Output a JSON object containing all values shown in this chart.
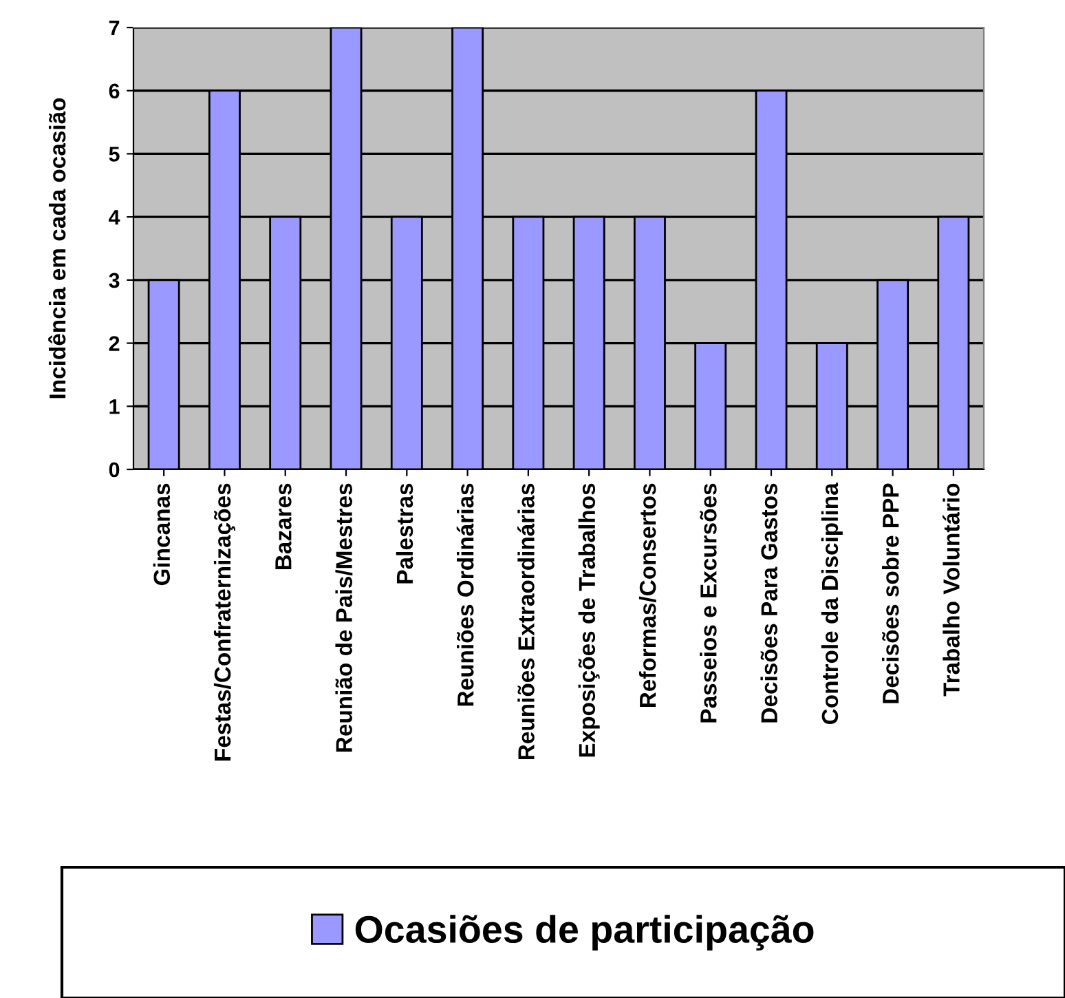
{
  "chart_data": {
    "type": "bar",
    "ylabel": "Incidência em cada ocasião",
    "categories": [
      "Gincanas",
      "Festas/Confraternizações",
      "Bazares",
      "Reunião de Pais/Mestres",
      "Palestras",
      "Reuniões Ordinárias",
      "Reuniões Extraordinárias",
      "Exposições de Trabalhos",
      "Reformas/Consertos",
      "Passeios e Excursões",
      "Decisões Para Gastos",
      "Controle da Disciplina",
      "Decisões sobre PPP",
      "Trabalho Voluntário"
    ],
    "series": [
      {
        "name": "Ocasiões de participação",
        "color": "#9999ff",
        "values": [
          3,
          6,
          4,
          7,
          4,
          7,
          4,
          4,
          4,
          2,
          6,
          2,
          3,
          4
        ]
      }
    ],
    "ylim": [
      0,
      7
    ],
    "yticks": [
      0,
      1,
      2,
      3,
      4,
      5,
      6,
      7
    ],
    "grid": "y",
    "legend": "bottom"
  }
}
